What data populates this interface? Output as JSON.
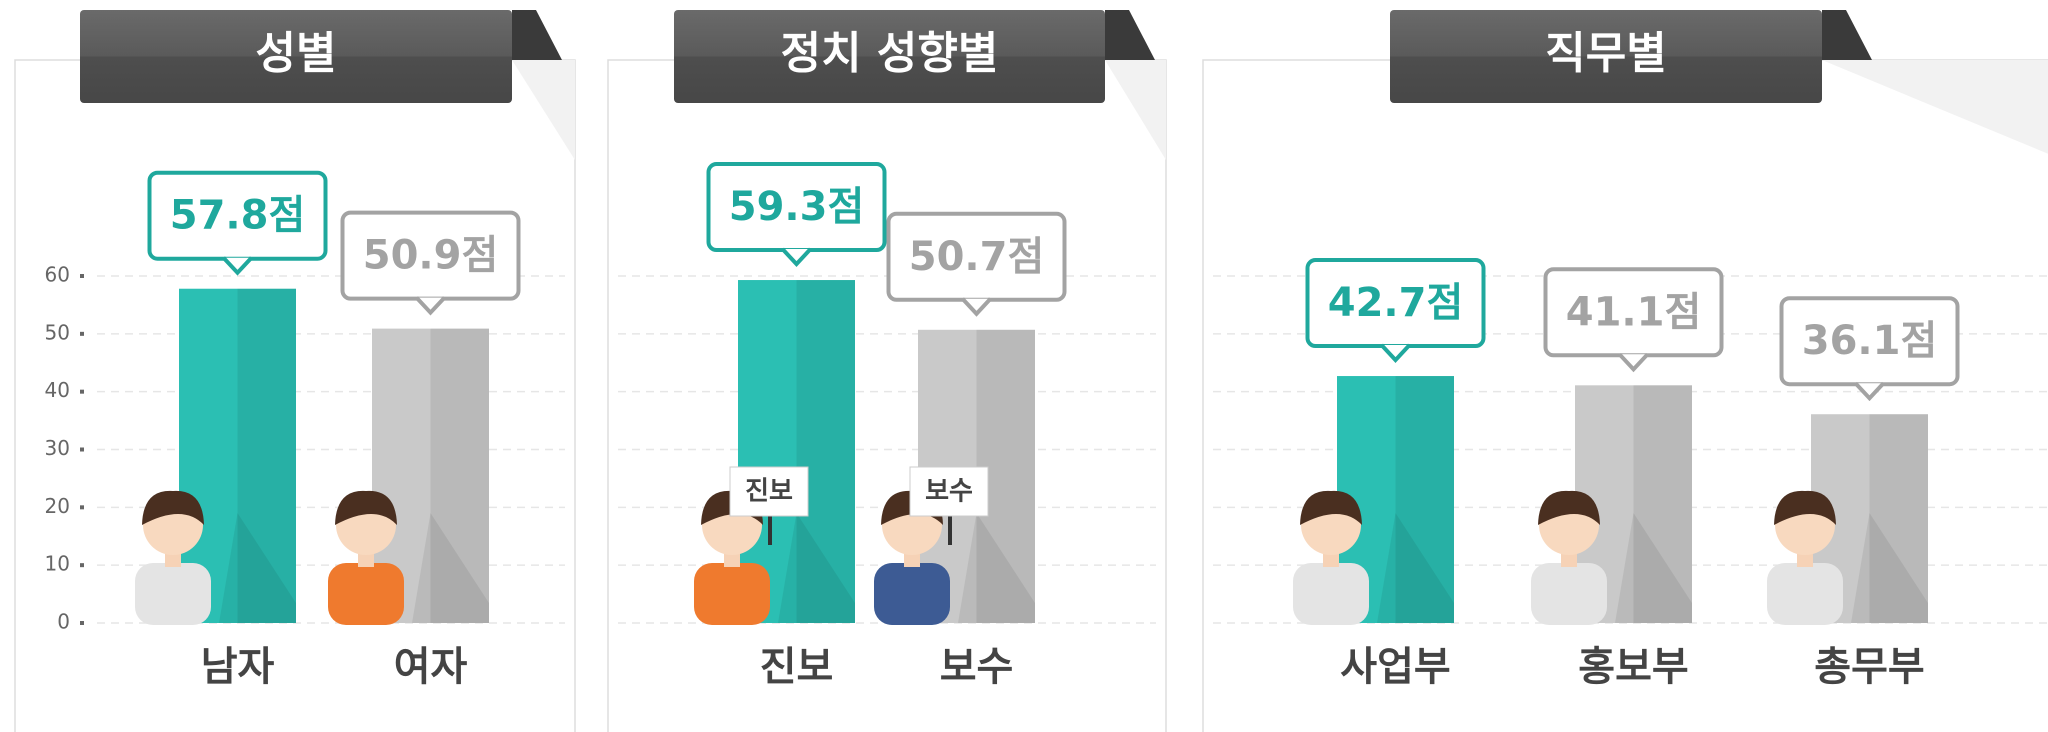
{
  "chart_data": [
    {
      "type": "bar",
      "title": "성별",
      "categories": [
        "남자",
        "여자"
      ],
      "values": [
        57.8,
        50.9
      ],
      "value_labels": [
        "57.8점",
        "50.9점"
      ],
      "colors": [
        "#2bbfb3",
        "#c9c9c9"
      ],
      "ylim": [
        0,
        60
      ],
      "yticks": [
        0,
        10,
        20,
        30,
        40,
        50,
        60
      ],
      "grid": true
    },
    {
      "type": "bar",
      "title": "정치 성향별",
      "categories": [
        "진보",
        "보수"
      ],
      "values": [
        59.3,
        50.7
      ],
      "value_labels": [
        "59.3점",
        "50.7점"
      ],
      "annotations": [
        "진보",
        "보수"
      ],
      "colors": [
        "#2bbfb3",
        "#c9c9c9"
      ]
    },
    {
      "type": "bar",
      "title": "직무별",
      "categories": [
        "사업부",
        "홍보부",
        "총무부"
      ],
      "values": [
        42.7,
        41.1,
        36.1
      ],
      "value_labels": [
        "42.7점",
        "41.1점",
        "36.1점"
      ],
      "colors": [
        "#2bbfb3",
        "#c9c9c9",
        "#c9c9c9"
      ]
    }
  ]
}
